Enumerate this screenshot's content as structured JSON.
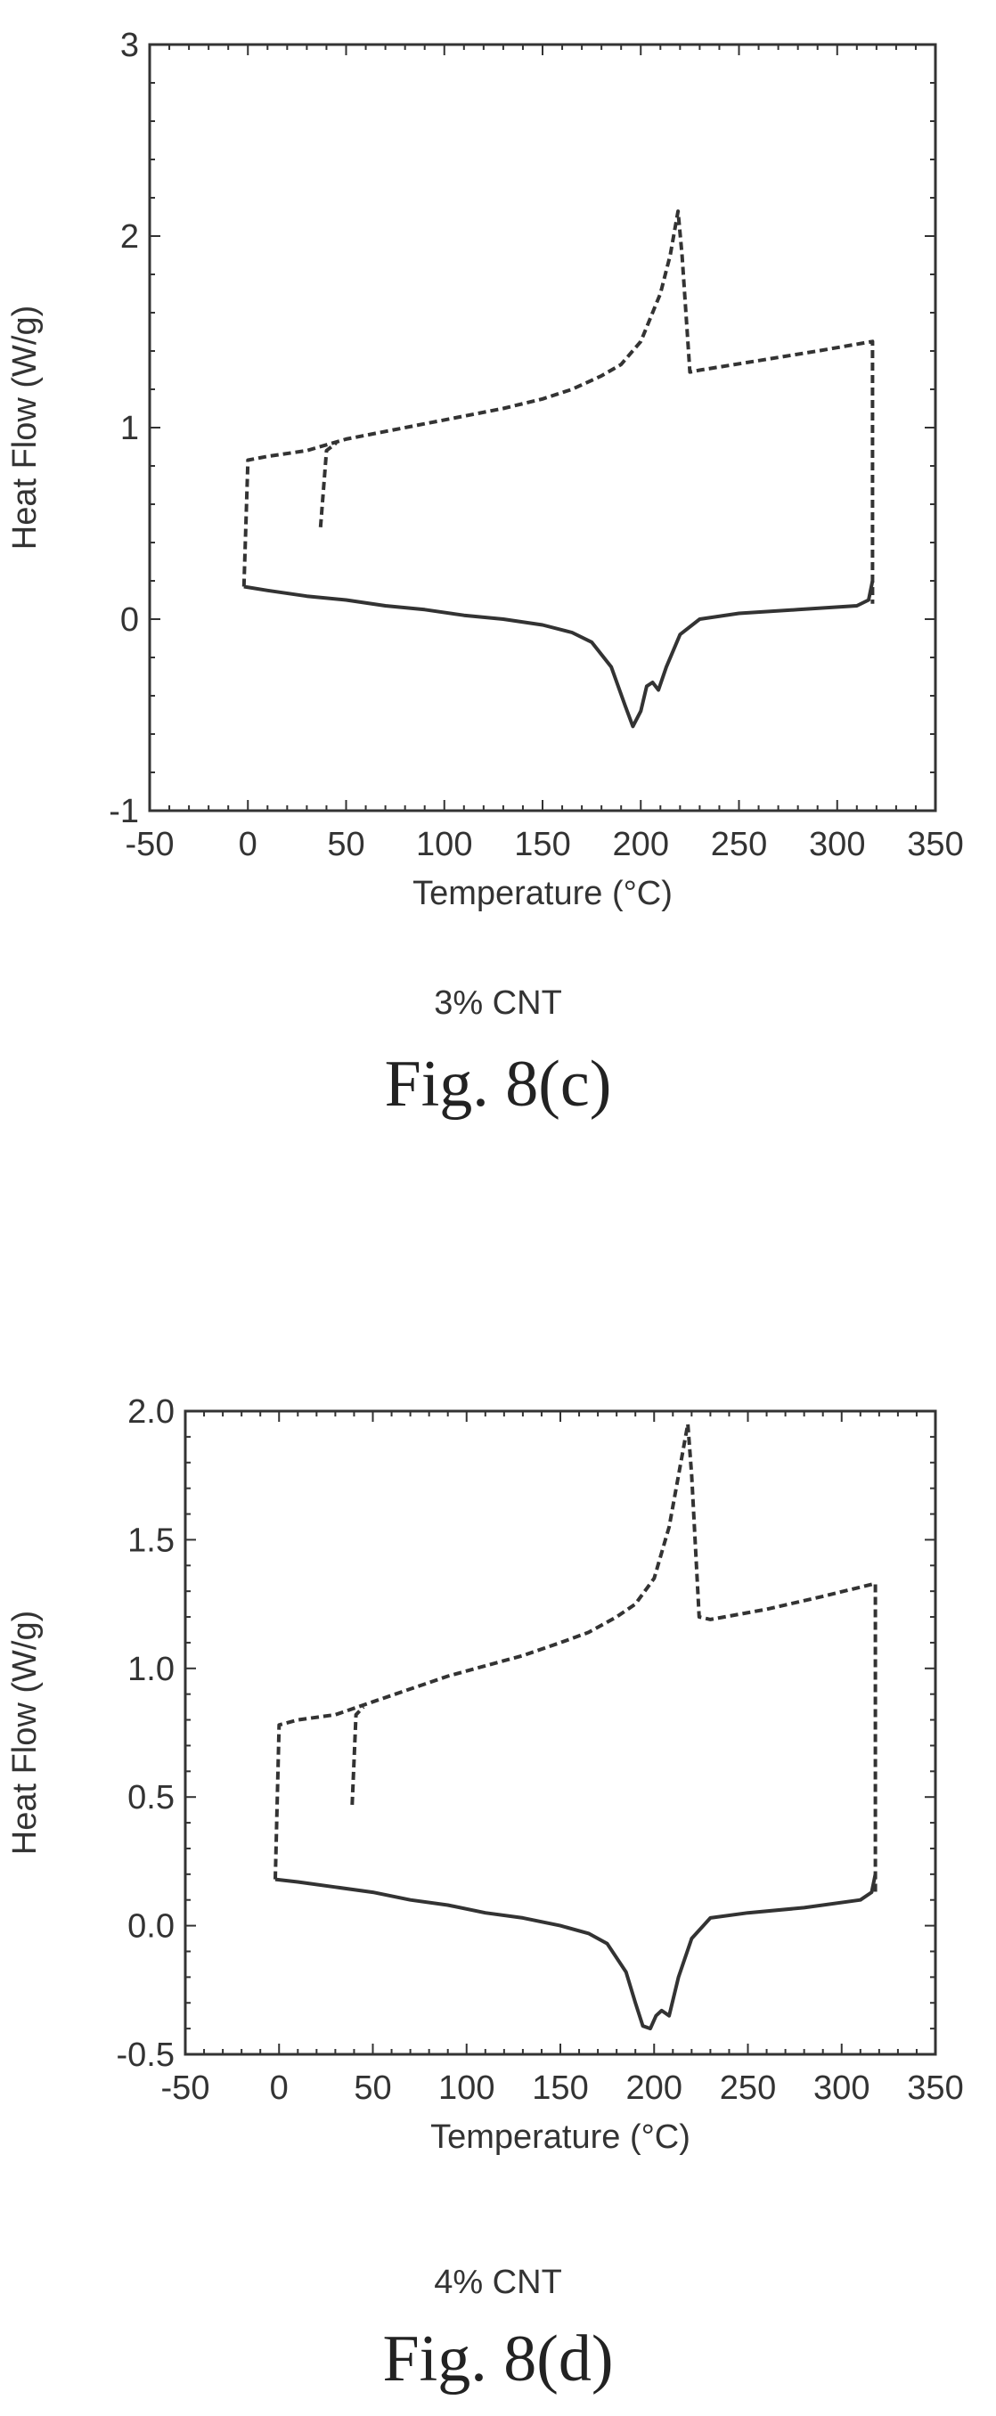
{
  "chart_data": [
    {
      "type": "line",
      "xlabel": "Temperature (°C)",
      "ylabel": "Heat Flow (W/g)",
      "xlim": [
        -50,
        350
      ],
      "ylim": [
        -1,
        3
      ],
      "xticks": [
        -50,
        0,
        50,
        100,
        150,
        200,
        250,
        300,
        350
      ],
      "yticks": [
        -1,
        0,
        1,
        2,
        3
      ],
      "grid": false,
      "caption": "3% CNT",
      "figure_label": "Fig. 8(c)",
      "series": [
        {
          "style": "dashed",
          "x": [
            -2,
            0,
            10,
            30,
            50,
            70,
            90,
            110,
            130,
            150,
            165,
            180,
            190,
            200,
            210,
            215,
            219,
            221,
            225,
            230,
            260,
            290,
            318,
            318
          ],
          "y": [
            0.17,
            0.83,
            0.85,
            0.88,
            0.94,
            0.98,
            1.02,
            1.06,
            1.1,
            1.15,
            1.2,
            1.27,
            1.33,
            1.45,
            1.7,
            1.9,
            2.13,
            1.9,
            1.29,
            1.3,
            1.35,
            1.4,
            1.45,
            0.08
          ]
        },
        {
          "style": "dashed",
          "x": [
            37,
            40,
            45
          ],
          "y": [
            0.48,
            0.88,
            0.92
          ]
        },
        {
          "style": "solid",
          "x": [
            -2,
            10,
            30,
            50,
            70,
            90,
            110,
            130,
            150,
            165,
            175,
            185,
            192,
            196,
            200,
            203,
            206,
            209,
            213,
            220,
            230,
            250,
            280,
            310,
            316,
            318
          ],
          "y": [
            0.17,
            0.15,
            0.12,
            0.1,
            0.07,
            0.05,
            0.02,
            0.0,
            -0.03,
            -0.07,
            -0.12,
            -0.25,
            -0.45,
            -0.56,
            -0.48,
            -0.35,
            -0.33,
            -0.37,
            -0.25,
            -0.08,
            0.0,
            0.03,
            0.05,
            0.07,
            0.1,
            0.2
          ]
        }
      ]
    },
    {
      "type": "line",
      "xlabel": "Temperature (°C)",
      "ylabel": "Heat Flow (W/g)",
      "xlim": [
        -50,
        350
      ],
      "ylim": [
        -0.5,
        2.0
      ],
      "xticks": [
        -50,
        0,
        50,
        100,
        150,
        200,
        250,
        300,
        350
      ],
      "yticks": [
        -0.5,
        0.0,
        0.5,
        1.0,
        1.5,
        2.0
      ],
      "ytick_labels": [
        "-0.5",
        "0.0",
        "0.5",
        "1.0",
        "1.5",
        "2.0"
      ],
      "grid": false,
      "caption": "4% CNT",
      "figure_label": "Fig. 8(d)",
      "series": [
        {
          "style": "dashed",
          "x": [
            -2,
            0,
            10,
            30,
            50,
            70,
            90,
            110,
            130,
            150,
            165,
            180,
            190,
            200,
            208,
            213,
            218,
            220,
            224,
            230,
            260,
            290,
            318,
            318
          ],
          "y": [
            0.18,
            0.78,
            0.8,
            0.82,
            0.87,
            0.92,
            0.97,
            1.01,
            1.05,
            1.1,
            1.14,
            1.2,
            1.25,
            1.35,
            1.55,
            1.75,
            1.95,
            1.75,
            1.2,
            1.19,
            1.23,
            1.28,
            1.33,
            0.12
          ]
        },
        {
          "style": "dashed",
          "x": [
            39,
            41,
            45
          ],
          "y": [
            0.47,
            0.82,
            0.85
          ]
        },
        {
          "style": "solid",
          "x": [
            -2,
            10,
            30,
            50,
            70,
            90,
            110,
            130,
            150,
            165,
            175,
            185,
            190,
            194,
            198,
            201,
            204,
            208,
            213,
            220,
            230,
            250,
            280,
            310,
            316,
            318
          ],
          "y": [
            0.18,
            0.17,
            0.15,
            0.13,
            0.1,
            0.08,
            0.05,
            0.03,
            0.0,
            -0.03,
            -0.07,
            -0.18,
            -0.3,
            -0.39,
            -0.4,
            -0.35,
            -0.33,
            -0.35,
            -0.2,
            -0.05,
            0.03,
            0.05,
            0.07,
            0.1,
            0.13,
            0.2
          ]
        }
      ]
    }
  ]
}
